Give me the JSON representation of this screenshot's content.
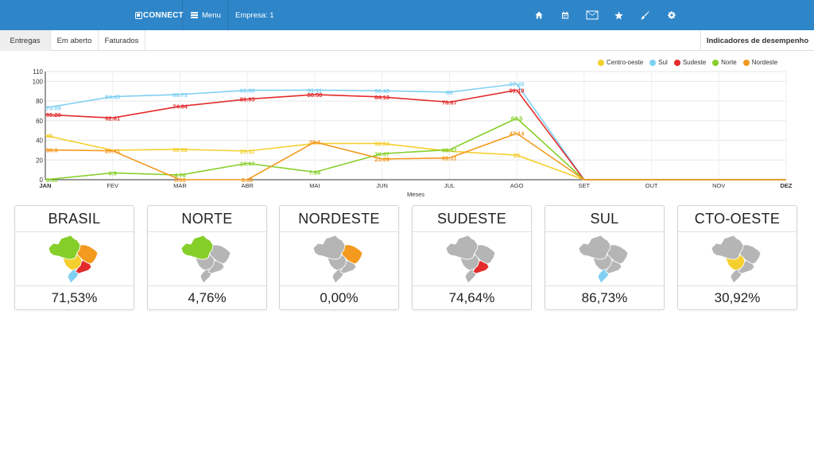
{
  "navbar": {
    "brand": "CONNECT",
    "menu_label": "Menu",
    "empresa_label": "Empresa: 1",
    "icons": [
      "home-icon",
      "calendar-icon",
      "envelope-icon",
      "star-icon",
      "brush-icon",
      "gear-icon"
    ]
  },
  "tabs": [
    {
      "label": "Entregas",
      "active": true
    },
    {
      "label": "Em aberto",
      "active": false
    },
    {
      "label": "Faturados",
      "active": false
    }
  ],
  "kpi_title": "Indicadores de desempenho",
  "chart_data": {
    "type": "line",
    "categories": [
      "JAN",
      "FEV",
      "MAR",
      "ABR",
      "MAI",
      "JUN",
      "JUL",
      "AGO",
      "SET",
      "OUT",
      "NOV",
      "DEZ"
    ],
    "xlabel": "Meses",
    "ylabel": "",
    "ylim": [
      0,
      110
    ],
    "yticks": [
      0,
      20,
      40,
      60,
      80,
      100,
      110
    ],
    "grid": true,
    "legend_position": "top-right",
    "series": [
      {
        "name": "Centro-oeste",
        "color": "#f5cf2e",
        "values": [
          45,
          30,
          30.92,
          29.11,
          36.84,
          36.84,
          29,
          25,
          0,
          0,
          0,
          0
        ],
        "labels": [
          "45",
          "",
          "30.92",
          "29.11",
          "",
          "36.84",
          "",
          "25",
          "",
          "",
          "",
          ""
        ]
      },
      {
        "name": "Sul",
        "color": "#7fd0f2",
        "values": [
          73.09,
          84.45,
          86.73,
          90.98,
          91.11,
          90.48,
          89,
          97.45,
          0,
          0,
          0,
          0
        ],
        "labels": [
          "73.09",
          "84.45",
          "86.73",
          "90.98",
          "91.11",
          "90.48",
          "89",
          "97.45",
          "",
          "",
          "",
          ""
        ]
      },
      {
        "name": "Sudeste",
        "color": "#e32b2b",
        "values": [
          66.29,
          62.81,
          74.64,
          81.95,
          86.58,
          84.13,
          78.87,
          91.19,
          0,
          0,
          0,
          0
        ],
        "labels": [
          "66.29",
          "62.81",
          "74.64",
          "81.95",
          "86.58",
          "84.13",
          "78.87",
          "91.19",
          "",
          "",
          "",
          ""
        ]
      },
      {
        "name": "Norte",
        "color": "#86cf2a",
        "values": [
          0,
          6.9,
          4.76,
          16.67,
          7.69,
          26.47,
          30.47,
          62.5,
          0,
          0,
          0,
          0
        ],
        "labels": [
          "0.00",
          "6.9",
          "4.76",
          "16.67",
          "7.69",
          "26.47",
          "30.47",
          "62.5",
          "",
          "",
          "",
          ""
        ]
      },
      {
        "name": "Nordeste",
        "color": "#f39a1f",
        "values": [
          30.3,
          29.41,
          0,
          0,
          38.3,
          21.09,
          22.11,
          47.14,
          0,
          0,
          0,
          0
        ],
        "labels": [
          "30.3",
          "29.41",
          "0.00",
          "0.00",
          "38.3",
          "21.09",
          "22.11",
          "47.14",
          "",
          "",
          "",
          ""
        ]
      }
    ]
  },
  "cards": [
    {
      "title": "BRASIL",
      "value": "71,53%",
      "highlight": "all"
    },
    {
      "title": "NORTE",
      "value": "4,76%",
      "highlight": "norte"
    },
    {
      "title": "NORDESTE",
      "value": "0,00%",
      "highlight": "nordeste"
    },
    {
      "title": "SUDESTE",
      "value": "74,64%",
      "highlight": "sudeste"
    },
    {
      "title": "SUL",
      "value": "86,73%",
      "highlight": "sul"
    },
    {
      "title": "CTO-OESTE",
      "value": "30,92%",
      "highlight": "centro"
    }
  ],
  "map_colors": {
    "inactive": "#b5b5b5",
    "norte": "#86cf2a",
    "nordeste": "#f39a1f",
    "sudeste": "#e32b2b",
    "sul": "#7fd0f2",
    "centro": "#f5cf2e"
  }
}
